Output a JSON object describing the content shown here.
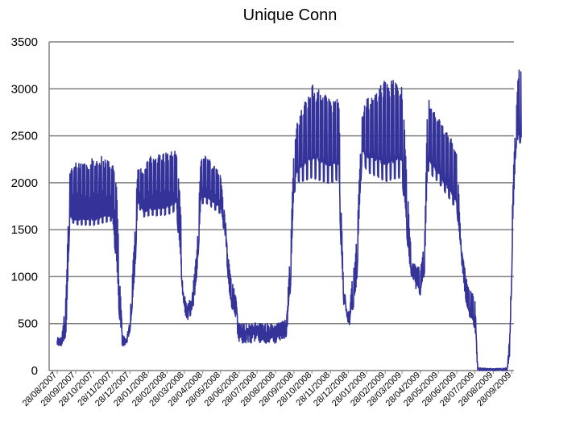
{
  "chart_data": {
    "type": "line",
    "title": "Unique Conn",
    "xlabel": "",
    "ylabel": "",
    "ylim": [
      0,
      3500
    ],
    "yticks": [
      0,
      500,
      1000,
      1500,
      2000,
      2500,
      3000,
      3500
    ],
    "grid": "horizontal",
    "legend": "none",
    "x_tick_labels": [
      "28/08/2007",
      "28/09/2007",
      "28/10/2007",
      "28/11/2007",
      "28/12/2007",
      "28/01/2008",
      "28/02/2008",
      "28/03/2008",
      "28/04/2008",
      "28/05/2008",
      "28/06/2008",
      "28/07/2008",
      "28/08/2008",
      "28/09/2008",
      "28/10/2008",
      "28/11/2008",
      "28/12/2008",
      "28/01/2009",
      "28/02/2009",
      "28/03/2009",
      "28/04/2009",
      "28/05/2009",
      "28/06/2009",
      "28/07/2009",
      "28/08/2009",
      "28/09/2009"
    ],
    "series": [
      {
        "color": "#33339a",
        "profile": [
          [
            "28/08/2007",
            250,
            350
          ],
          [
            "05/09/2007",
            250,
            370
          ],
          [
            "12/09/2007",
            300,
            900
          ],
          [
            "18/09/2007",
            1500,
            2200
          ],
          [
            "28/09/2007",
            1450,
            2250
          ],
          [
            "28/10/2007",
            1430,
            2300
          ],
          [
            "10/11/2007",
            1450,
            2320
          ],
          [
            "28/11/2007",
            1500,
            2250
          ],
          [
            "05/12/2007",
            1000,
            2150
          ],
          [
            "10/12/2007",
            500,
            1200
          ],
          [
            "15/12/2007",
            250,
            400
          ],
          [
            "22/12/2007",
            280,
            320
          ],
          [
            "28/12/2007",
            400,
            600
          ],
          [
            "05/01/2008",
            900,
            1500
          ],
          [
            "10/01/2008",
            1700,
            2200
          ],
          [
            "20/01/2008",
            1550,
            2150
          ],
          [
            "28/01/2008",
            1550,
            2300
          ],
          [
            "28/02/2008",
            1550,
            2350
          ],
          [
            "15/03/2008",
            1600,
            2350
          ],
          [
            "22/03/2008",
            1000,
            1800
          ],
          [
            "26/03/2008",
            750,
            900
          ],
          [
            "01/04/2008",
            500,
            700
          ],
          [
            "10/04/2008",
            600,
            800
          ],
          [
            "18/04/2008",
            900,
            1300
          ],
          [
            "25/04/2008",
            1700,
            2300
          ],
          [
            "05/05/2008",
            1700,
            2300
          ],
          [
            "28/05/2008",
            1600,
            2100
          ],
          [
            "05/06/2008",
            1400,
            1600
          ],
          [
            "12/06/2008",
            700,
            1100
          ],
          [
            "22/06/2008",
            500,
            800
          ],
          [
            "28/06/2008",
            280,
            500
          ],
          [
            "28/07/2008",
            300,
            520
          ],
          [
            "28/08/2008",
            280,
            500
          ],
          [
            "15/09/2008",
            350,
            550
          ],
          [
            "22/09/2008",
            800,
            1300
          ],
          [
            "28/09/2008",
            1800,
            2450
          ],
          [
            "05/10/2008",
            1900,
            2700
          ],
          [
            "28/10/2008",
            1900,
            3050
          ],
          [
            "28/11/2008",
            1850,
            2900
          ],
          [
            "12/12/2008",
            1900,
            2900
          ],
          [
            "16/12/2008",
            1200,
            1800
          ],
          [
            "20/12/2008",
            700,
            900
          ],
          [
            "28/12/2008",
            450,
            620
          ],
          [
            "10/01/2009",
            700,
            1300
          ],
          [
            "20/01/2009",
            2200,
            2750
          ],
          [
            "28/01/2009",
            2000,
            2900
          ],
          [
            "28/02/2009",
            1850,
            3100
          ],
          [
            "28/03/2009",
            1900,
            3100
          ],
          [
            "10/04/2009",
            1000,
            1500
          ],
          [
            "15/04/2009",
            950,
            1150
          ],
          [
            "28/04/2009",
            750,
            1100
          ],
          [
            "05/05/2009",
            1000,
            1400
          ],
          [
            "10/05/2009",
            2000,
            2950
          ],
          [
            "28/05/2009",
            1900,
            2700
          ],
          [
            "28/06/2009",
            1600,
            2400
          ],
          [
            "05/07/2009",
            1200,
            1350
          ],
          [
            "15/07/2009",
            600,
            950
          ],
          [
            "28/07/2009",
            400,
            800
          ],
          [
            "02/08/2009",
            0,
            30
          ],
          [
            "28/08/2009",
            0,
            20
          ],
          [
            "20/09/2009",
            0,
            30
          ],
          [
            "25/09/2009",
            150,
            400
          ],
          [
            "30/09/2009",
            1500,
            2000
          ],
          [
            "05/10/2009",
            2300,
            2800
          ],
          [
            "10/10/2009",
            2300,
            3300
          ],
          [
            "14/10/2009",
            2300,
            3200
          ]
        ]
      }
    ]
  }
}
